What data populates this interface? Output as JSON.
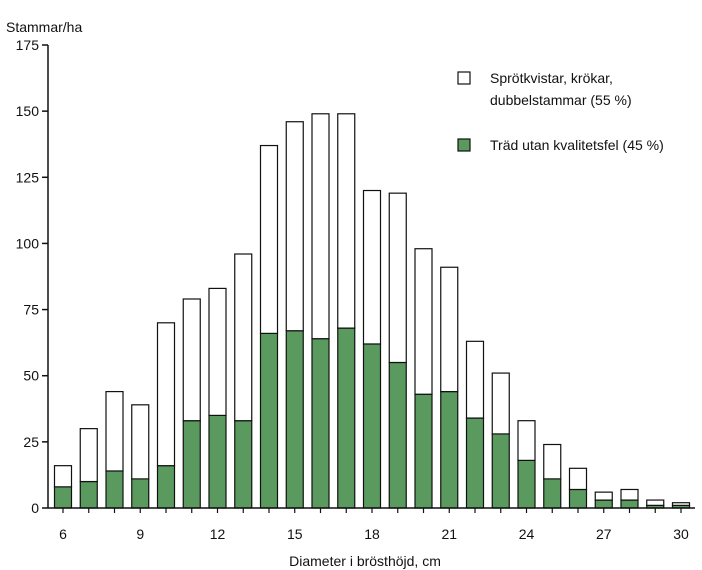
{
  "chart_data": {
    "type": "bar",
    "stacked": true,
    "title": "",
    "ylabel": "Stammar/ha",
    "xlabel": "Diameter i brösthöjd, cm",
    "ylim": [
      0,
      175
    ],
    "yticks": [
      0,
      25,
      50,
      75,
      100,
      125,
      150,
      175
    ],
    "xticks": [
      6,
      9,
      12,
      15,
      18,
      21,
      24,
      27,
      30
    ],
    "x": [
      6,
      7,
      8,
      9,
      10,
      11,
      12,
      13,
      14,
      15,
      16,
      17,
      18,
      19,
      20,
      21,
      22,
      23,
      24,
      25,
      26,
      27,
      28,
      29,
      30
    ],
    "grid": false,
    "legend_position": "top-right",
    "series": [
      {
        "name": "Träd utan kvalitetsfel (45 %)",
        "color": "#5a9a5e",
        "values": [
          8,
          10,
          14,
          11,
          16,
          33,
          35,
          33,
          66,
          67,
          64,
          68,
          62,
          55,
          43,
          44,
          34,
          28,
          18,
          11,
          7,
          3,
          3,
          1,
          1
        ]
      },
      {
        "name_lines": [
          "Sprötkvistar, krökar,",
          "dubbelstammar  (55 %)"
        ],
        "color": "#ffffff",
        "values": [
          8,
          20,
          30,
          28,
          54,
          46,
          48,
          63,
          71,
          79,
          85,
          81,
          58,
          64,
          55,
          47,
          29,
          23,
          15,
          13,
          8,
          3,
          4,
          2,
          1
        ]
      }
    ]
  }
}
